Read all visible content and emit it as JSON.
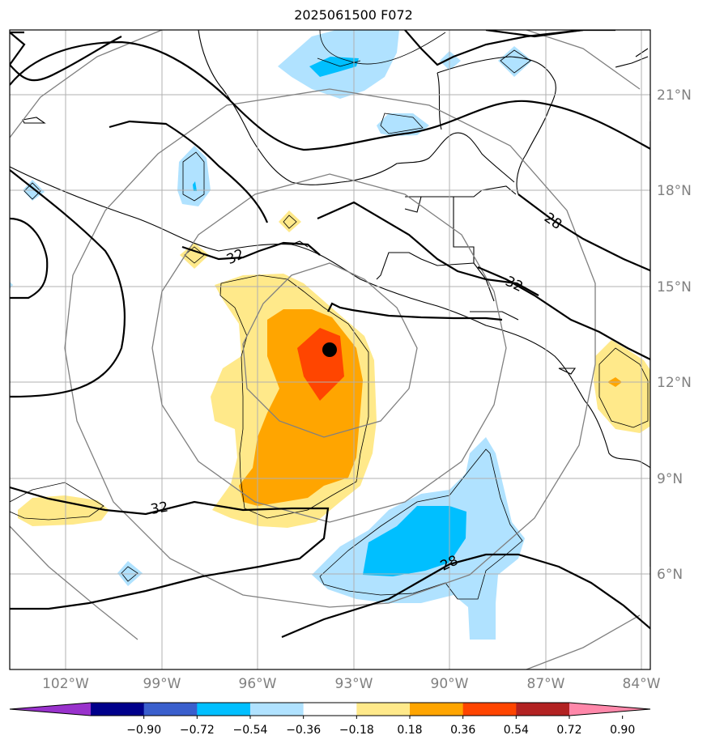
{
  "title": "2025061500 F072",
  "map": {
    "lon_ticks": [
      "102°W",
      "99°W",
      "96°W",
      "93°W",
      "90°W",
      "87°W",
      "84°W"
    ],
    "lat_ticks": [
      "21°N",
      "18°N",
      "15°N",
      "12°N",
      "9°N",
      "6°N"
    ],
    "contour_labels": [
      "32",
      "28",
      "32",
      "32",
      "28"
    ],
    "storm_center": {
      "lon": -93.8,
      "lat": 13.1
    }
  },
  "colorbar": {
    "ticks": [
      "−0.90",
      "−0.72",
      "−0.54",
      "−0.36",
      "−0.18",
      "0.18",
      "0.36",
      "0.54",
      "0.72",
      "0.90"
    ],
    "colors": [
      "#9932CC",
      "#00008B",
      "#3A5FCD",
      "#00BFFF",
      "#B0E2FF",
      "#FFFFFF",
      "#FFE98A",
      "#FFA500",
      "#FF4500",
      "#B22222",
      "#FF88AA"
    ]
  }
}
